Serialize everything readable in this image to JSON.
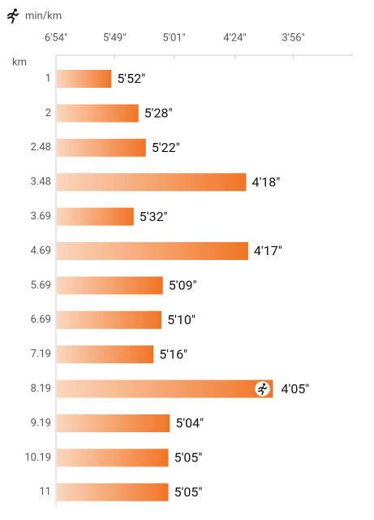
{
  "chart_data": {
    "type": "hbar",
    "x_label": "min/km",
    "y_label": "km",
    "scale": "reciprocal",
    "categories": [
      "1",
      "2",
      "2.48",
      "3.48",
      "3.69",
      "4.69",
      "5.69",
      "6.69",
      "7.19",
      "8.19",
      "9.19",
      "10.19",
      "11"
    ],
    "values": [
      352,
      328,
      322,
      258,
      332,
      257,
      309,
      310,
      316,
      245,
      304,
      305,
      305
    ],
    "value_labels": [
      "5'52\"",
      "5'28\"",
      "5'22\"",
      "4'18\"",
      "5'32\"",
      "4'17\"",
      "5'09\"",
      "5'10\"",
      "5'16\"",
      "4'05\"",
      "5'04\"",
      "5'05\"",
      "5'05\""
    ],
    "colors": [
      "#fad6be",
      "#f07426"
    ],
    "xlim": [
      414,
      213
    ],
    "xticks": [
      {
        "value": 414,
        "label": "6'54\""
      },
      {
        "value": 349,
        "label": "5'49\""
      },
      {
        "value": 301,
        "label": "5'01\""
      },
      {
        "value": 264,
        "label": "4'24\""
      },
      {
        "value": 236,
        "label": "3'56\""
      }
    ]
  }
}
